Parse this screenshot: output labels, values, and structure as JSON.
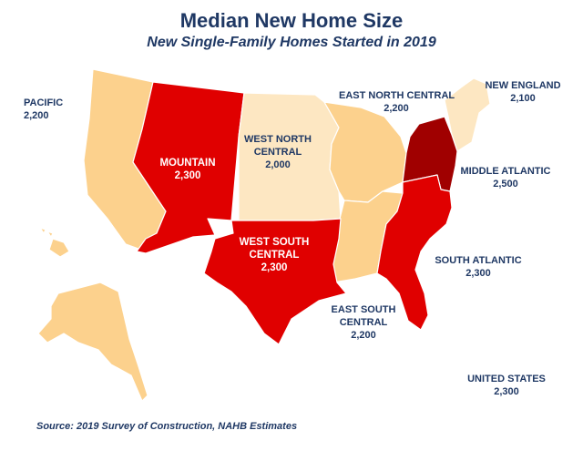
{
  "title": "Median New Home Size",
  "subtitle": "New Single-Family Homes Started in 2019",
  "source": "Source: 2019 Survey of Construction, NAHB Estimates",
  "colors": {
    "light": "#fcd18d",
    "pale": "#fde7c2",
    "red": "#e00000",
    "dark": "#a00000",
    "border": "#ffffff",
    "text": "#1f3864"
  },
  "regions": {
    "pacific": {
      "name": "PACIFIC",
      "value": "2,200"
    },
    "mountain": {
      "name": "MOUNTAIN",
      "value": "2,300"
    },
    "west_north_central": {
      "name1": "WEST NORTH",
      "name2": "CENTRAL",
      "value": "2,000"
    },
    "east_north_central": {
      "name": "EAST NORTH CENTRAL",
      "value": "2,200"
    },
    "new_england": {
      "name": "NEW ENGLAND",
      "value": "2,100"
    },
    "middle_atlantic": {
      "name": "MIDDLE ATLANTIC",
      "value": "2,500"
    },
    "south_atlantic": {
      "name": "SOUTH ATLANTIC",
      "value": "2,300"
    },
    "west_south_central": {
      "name1": "WEST SOUTH",
      "name2": "CENTRAL",
      "value": "2,300"
    },
    "east_south_central": {
      "name1": "EAST SOUTH",
      "name2": "CENTRAL",
      "value": "2,200"
    },
    "united_states": {
      "name": "UNITED STATES",
      "value": "2,300"
    }
  }
}
